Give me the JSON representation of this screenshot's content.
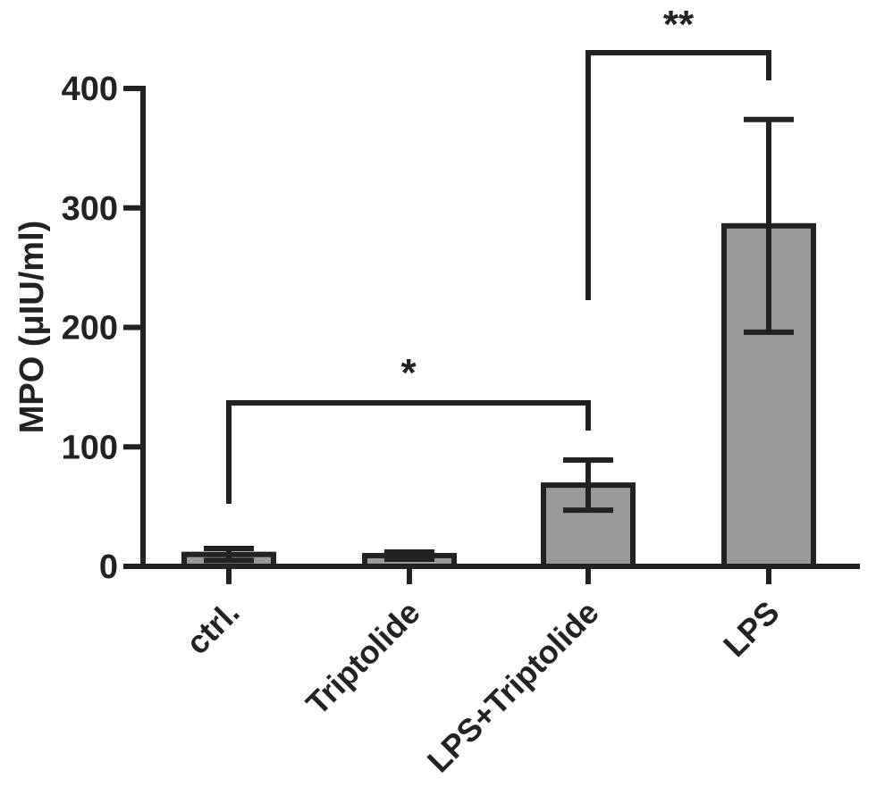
{
  "chart_data": {
    "type": "bar",
    "title": "",
    "xlabel": "",
    "ylabel": "MPO (μIU/ml)",
    "ylim": [
      0,
      400
    ],
    "yticks": [
      0,
      100,
      200,
      300,
      400
    ],
    "categories": [
      "ctrl.",
      "Triptolide",
      "LPS+Triptolide",
      "LPS"
    ],
    "values": [
      10,
      9,
      68,
      285
    ],
    "errors": [
      5,
      3,
      21,
      89
    ],
    "significance": [
      {
        "from": 0,
        "to": 2,
        "label": "*"
      },
      {
        "from": 2,
        "to": 3,
        "label": "**"
      }
    ],
    "bar_color": "#999999",
    "line_color": "#222222"
  }
}
